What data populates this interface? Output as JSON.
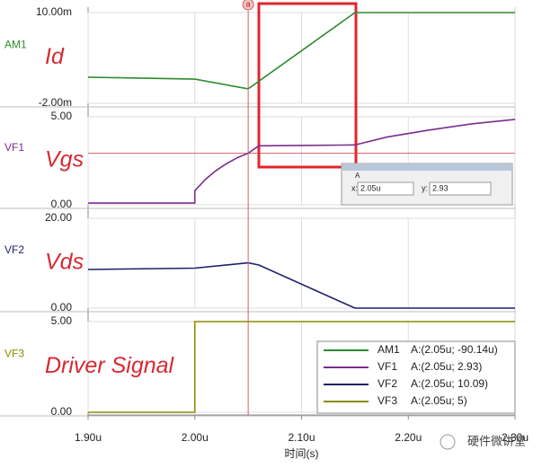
{
  "chart_data": [
    {
      "type": "line",
      "name": "AM1",
      "color": "#2e8b2e",
      "annotation": "Id",
      "readout": "A:(2.05u; -90.14u)",
      "x": [
        1.9,
        2.0,
        2.05,
        2.15,
        2.3
      ],
      "values": [
        1.45,
        1.2,
        -0.09,
        10,
        10
      ],
      "xlim": [
        1.9,
        2.3
      ],
      "ylim": [
        -2,
        10
      ],
      "yticks": [
        {
          "value": 10,
          "label": "10.00m"
        },
        {
          "value": -2,
          "label": "-2.00m"
        }
      ]
    },
    {
      "type": "line",
      "name": "VF1",
      "color": "#7b2d8e",
      "annotation": "Vgs",
      "readout": "A:(2.05u; 2.93)",
      "x": [
        1.9,
        2.0,
        2.0,
        2.01,
        2.02,
        2.03,
        2.04,
        2.05,
        2.06,
        2.1,
        2.15,
        2.18,
        2.22,
        2.26,
        2.3
      ],
      "values": [
        0.1,
        0.1,
        0.8,
        1.45,
        1.95,
        2.35,
        2.68,
        2.93,
        3.35,
        3.37,
        3.4,
        3.85,
        4.25,
        4.6,
        4.85
      ],
      "cursor_y": 2.93,
      "xlim": [
        1.9,
        2.3
      ],
      "ylim": [
        0,
        5
      ],
      "yticks": [
        {
          "value": 5,
          "label": "5.00"
        },
        {
          "value": 0,
          "label": "0.00"
        }
      ]
    },
    {
      "type": "line",
      "name": "VF2",
      "color": "#1f1f6e",
      "annotation": "Vds",
      "readout": "A:(2.05u; 10.09)",
      "x": [
        1.9,
        2.0,
        2.05,
        2.06,
        2.15,
        2.3
      ],
      "values": [
        8.6,
        8.9,
        10.09,
        9.6,
        0,
        0
      ],
      "xlim": [
        1.9,
        2.3
      ],
      "ylim": [
        0,
        20
      ],
      "yticks": [
        {
          "value": 20,
          "label": "20.00"
        },
        {
          "value": 0,
          "label": "0.00"
        }
      ]
    },
    {
      "type": "line",
      "name": "VF3",
      "color": "#8b8b00",
      "annotation": "Driver Signal",
      "readout": "A:(2.05u; 5)",
      "x": [
        1.9,
        2.0,
        2.0,
        2.3
      ],
      "values": [
        0,
        0,
        5,
        5
      ],
      "xlim": [
        1.9,
        2.3
      ],
      "ylim": [
        0,
        5
      ],
      "yticks": [
        {
          "value": 5,
          "label": "5.00"
        },
        {
          "value": 0,
          "label": "0.00"
        }
      ],
      "xticks": [
        {
          "value": 1.9,
          "label": "1.90u"
        },
        {
          "value": 2.0,
          "label": "2.00u"
        },
        {
          "value": 2.1,
          "label": "2.10u"
        },
        {
          "value": 2.2,
          "label": "2.20u"
        },
        {
          "value": 2.3,
          "label": "2.30u"
        }
      ],
      "xlabel": "时间(s)"
    }
  ],
  "cursor": {
    "label": "a",
    "x": 2.05
  },
  "cursor_box": {
    "title": "A",
    "x_label": "x:",
    "x_value": "2.05u",
    "y_label": "y:",
    "y_value": "2.93"
  },
  "watermark": "硬件微讲堂"
}
